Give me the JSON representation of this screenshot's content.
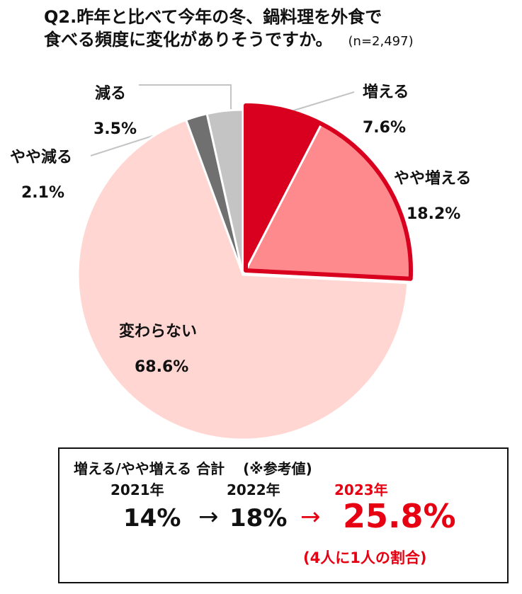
{
  "title": {
    "line1": "Q2.昨年と比べて今年の冬、鍋料理を外食で",
    "line2": "食べる頻度に変化がありそうですか。",
    "n": "(n=2,497)"
  },
  "chart_data": {
    "type": "pie",
    "title": "Q2.昨年と比べて今年の冬、鍋料理を外食で食べる頻度に変化がありそうですか。",
    "slices": [
      {
        "label": "増える",
        "value": 7.6,
        "display": "7.6%",
        "color": "#d8001e"
      },
      {
        "label": "やや増える",
        "value": 18.2,
        "display": "18.2%",
        "color": "#ff8a8e"
      },
      {
        "label": "変わらない",
        "value": 68.6,
        "display": "68.6%",
        "color": "#ffd6d2"
      },
      {
        "label": "やや減る",
        "value": 2.1,
        "display": "2.1%",
        "color": "#707070"
      },
      {
        "label": "減る",
        "value": 3.5,
        "display": "3.5%",
        "color": "#c4c4c4"
      }
    ],
    "highlight_color": "#d8001e"
  },
  "summary": {
    "heading": "増える/やや増える 合計",
    "note": "(※参考値)",
    "years": [
      "2021年",
      "2022年",
      "2023年"
    ],
    "values": [
      "14%",
      "18%",
      "25.8%"
    ],
    "arrow": "→",
    "ratio_note": "(4人に1人の割合)",
    "accent": "#e60012"
  }
}
